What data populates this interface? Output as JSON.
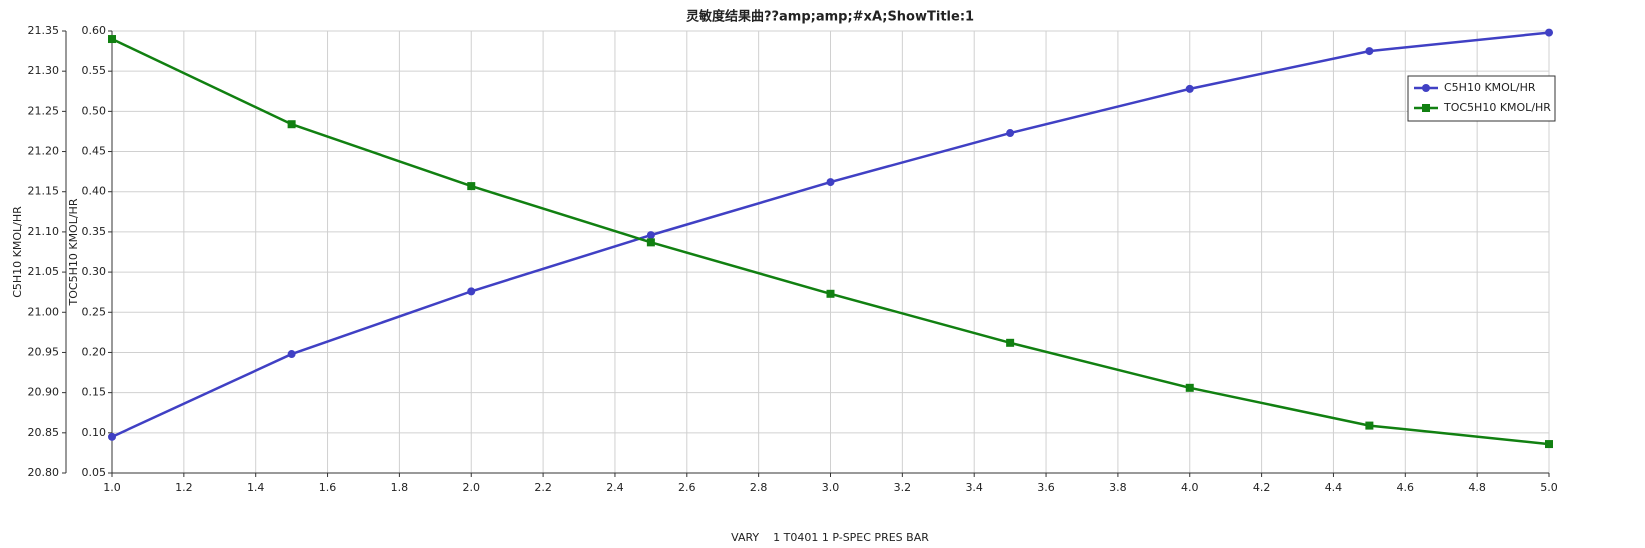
{
  "chart_data": {
    "type": "line",
    "title": "灵敏度结果曲??amp;amp;#xA;ShowTitle:1",
    "x_label": "VARY    1 T0401 1 P-SPEC PRES BAR",
    "y_label": "C5H10 KMOL/HR",
    "y2_label": "TOC5H10 KMOL/HR",
    "x": [
      1.0,
      1.5,
      2.0,
      2.5,
      3.0,
      3.5,
      4.0,
      4.5,
      5.0
    ],
    "series": [
      {
        "name": "C5H10 KMOL/HR",
        "color": "#4040c4",
        "marker": "circle",
        "axis": "y",
        "values": [
          20.845,
          20.948,
          21.026,
          21.096,
          21.162,
          21.223,
          21.278,
          21.325,
          21.348
        ]
      },
      {
        "name": "TOC5H10 KMOL/HR",
        "color": "#118011",
        "marker": "square",
        "axis": "y2",
        "values": [
          0.59,
          0.484,
          0.407,
          0.337,
          0.273,
          0.212,
          0.156,
          0.109,
          0.086
        ]
      }
    ],
    "xlim": [
      1.0,
      5.0
    ],
    "xticks": [
      {
        "value": 1.0,
        "label": "1.0"
      },
      1.2,
      1.4,
      1.6,
      1.8,
      {
        "value": 2.0,
        "label": "2.0"
      },
      2.2,
      2.4,
      2.6,
      2.8,
      {
        "value": 3.0,
        "label": "3.0"
      },
      3.2,
      3.4,
      3.6,
      3.8,
      {
        "value": 4.0,
        "label": "4.0"
      },
      4.2,
      4.4,
      4.6,
      4.8,
      {
        "value": 5.0,
        "label": "5.0"
      }
    ],
    "ylim": [
      20.8,
      21.35
    ],
    "yticks": [
      {
        "value": 20.8,
        "label": "20.80"
      },
      20.85,
      {
        "value": 20.9,
        "label": "20.90"
      },
      20.95,
      {
        "value": 21,
        "label": "21.00"
      },
      21.05,
      {
        "value": 21.1,
        "label": "21.10"
      },
      21.15,
      {
        "value": 21.2,
        "label": "21.20"
      },
      21.25,
      {
        "value": 21.3,
        "label": "21.30"
      },
      21.35
    ],
    "y2lim": [
      0.05,
      0.6
    ],
    "y2ticks": [
      0.05,
      {
        "value": 0.1,
        "label": "0.10"
      },
      0.15,
      {
        "value": 0.2,
        "label": "0.20"
      },
      0.25,
      {
        "value": 0.3,
        "label": "0.30"
      },
      0.35,
      {
        "value": 0.4,
        "label": "0.40"
      },
      0.45,
      {
        "value": 0.5,
        "label": "0.50"
      },
      0.55,
      {
        "value": 0.6,
        "label": "0.60"
      }
    ],
    "grid": true,
    "legend": "upper right"
  }
}
